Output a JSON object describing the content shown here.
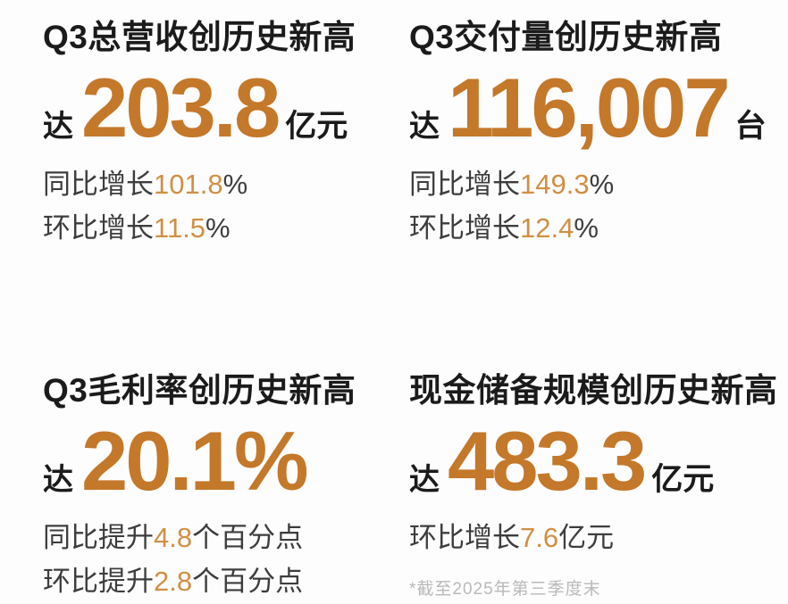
{
  "colors": {
    "background": "#FDFDFD",
    "title_text": "#1B1B1B",
    "body_text": "#3D3D3D",
    "accent_big": "#C4782A",
    "accent_inline": "#D18F43",
    "footnote_text": "#B9B9B9"
  },
  "cards": [
    {
      "title": "Q3总营收创历史新高",
      "prefix": "达",
      "value": "203.8",
      "unit": "亿元",
      "lines": [
        {
          "label": "同比增长",
          "number": "101.8",
          "suffix": "%"
        },
        {
          "label": "环比增长",
          "number": "11.5",
          "suffix": "%"
        }
      ]
    },
    {
      "title": "Q3交付量创历史新高",
      "prefix": "达",
      "value": "116,007",
      "unit": "台",
      "lines": [
        {
          "label": "同比增长",
          "number": "149.3",
          "suffix": "%"
        },
        {
          "label": "环比增长",
          "number": "12.4",
          "suffix": "%"
        }
      ]
    },
    {
      "title": "Q3毛利率创历史新高",
      "prefix": "达",
      "value": "20.1%",
      "unit": "",
      "lines": [
        {
          "label": "同比提升",
          "number": "4.8",
          "suffix": "个百分点"
        },
        {
          "label": "环比提升",
          "number": "2.8",
          "suffix": "个百分点"
        }
      ]
    },
    {
      "title": "现金储备规模创历史新高",
      "prefix": "达",
      "value": "483.3",
      "unit": "亿元",
      "lines": [
        {
          "label": "环比增长",
          "number": "7.6",
          "suffix": "亿元"
        }
      ],
      "footnote": "*截至2025年第三季度末"
    }
  ]
}
